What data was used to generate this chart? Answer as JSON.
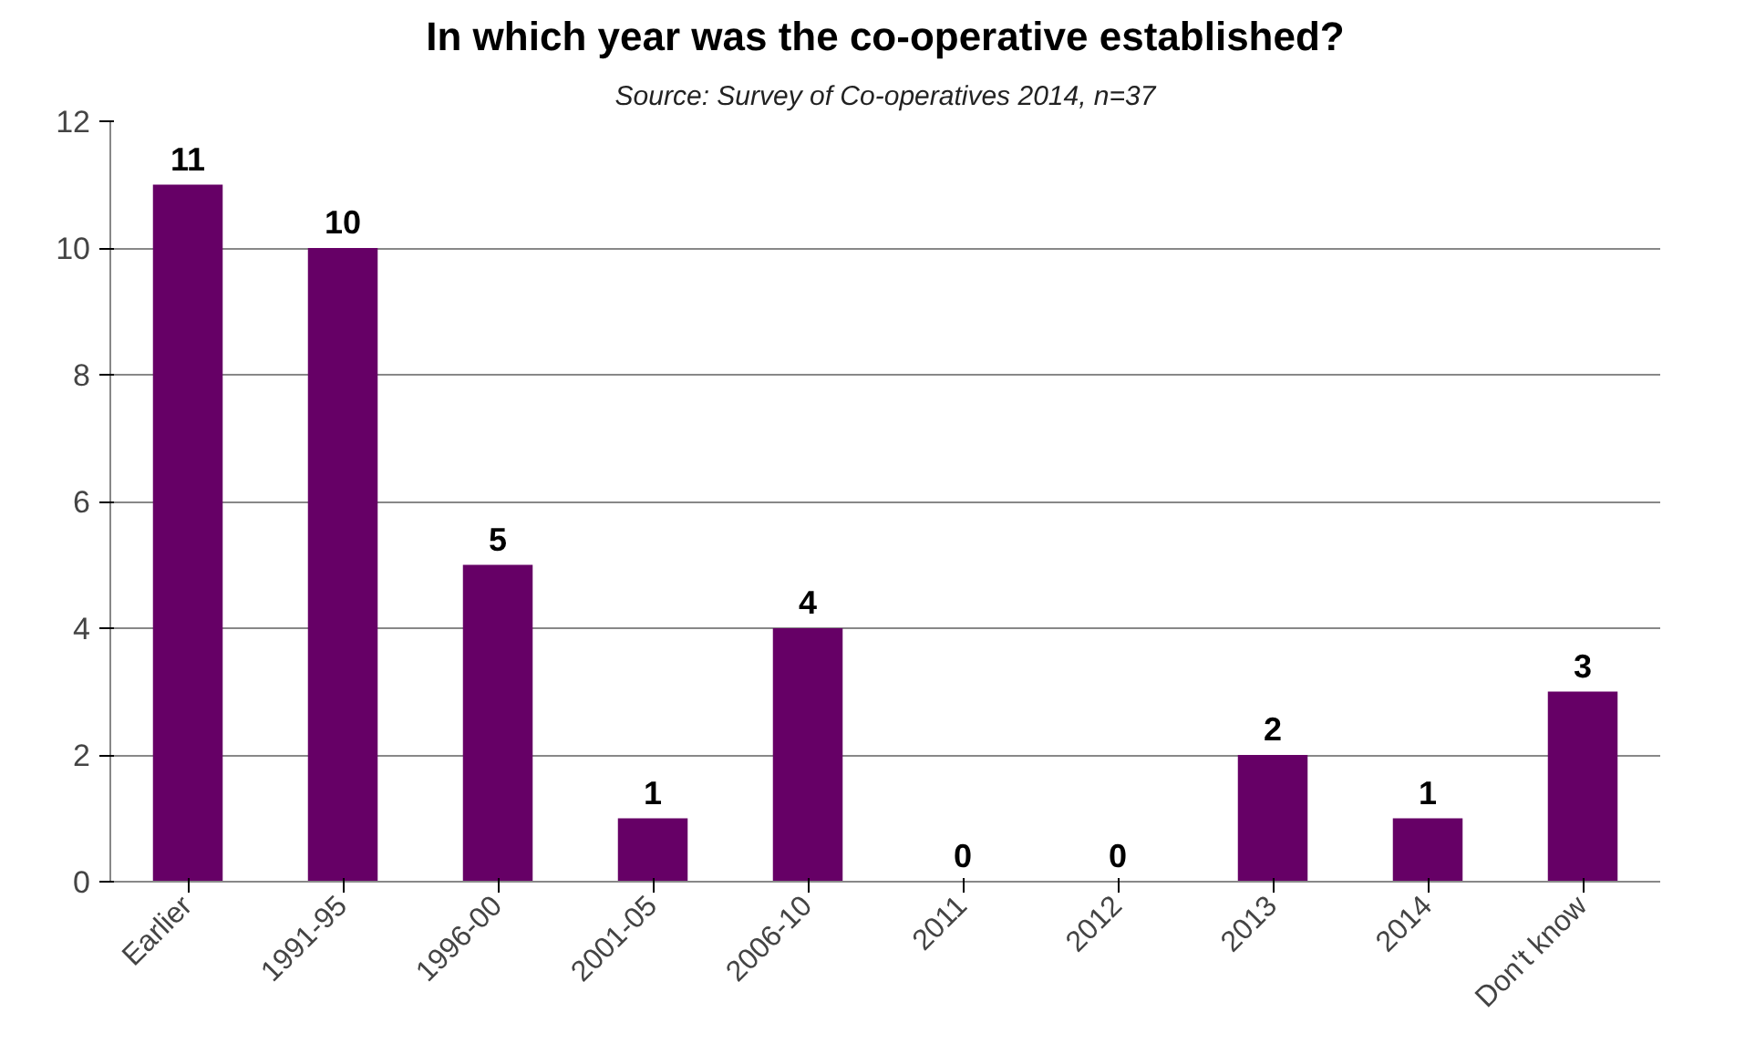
{
  "chart_data": {
    "type": "bar",
    "title": "In which year was the co-operative established?",
    "subtitle": "Source: Survey of Co-operatives 2014, n=37",
    "categories": [
      "Earlier",
      "1991-95",
      "1996-00",
      "2001-05",
      "2006-10",
      "2011",
      "2012",
      "2013",
      "2014",
      "Don't know"
    ],
    "values": [
      11,
      10,
      5,
      1,
      4,
      0,
      0,
      2,
      1,
      3
    ],
    "color": "#660066",
    "ylim": [
      0,
      12
    ],
    "yticks": [
      0,
      2,
      4,
      6,
      8,
      10,
      12
    ],
    "grid": "y",
    "data_labels": true
  }
}
